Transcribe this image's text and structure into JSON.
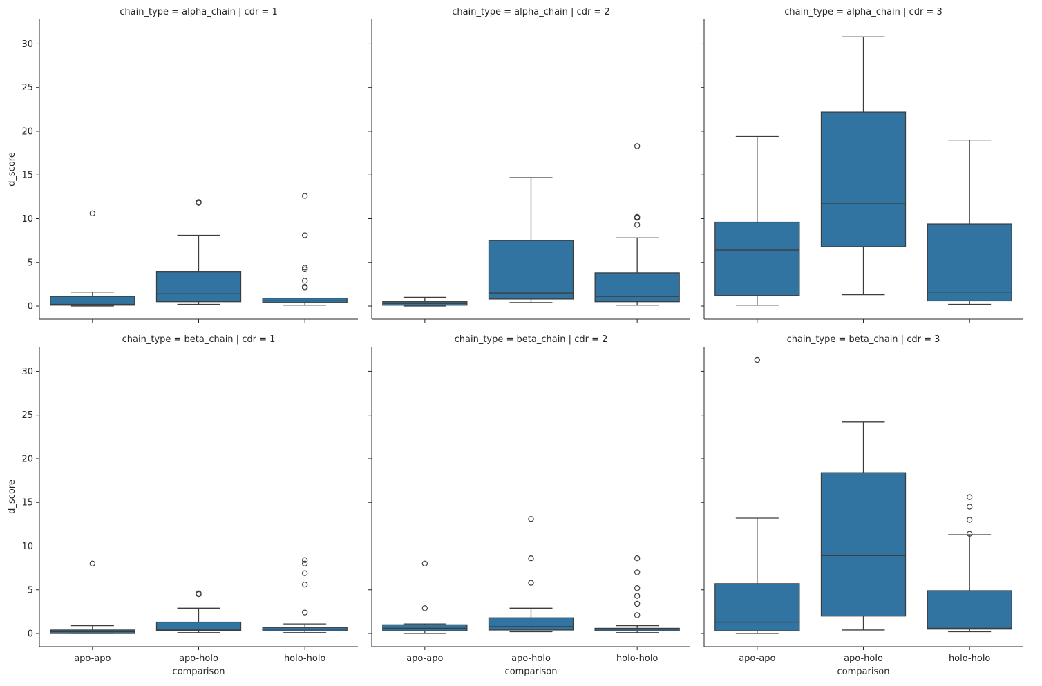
{
  "chart_data": {
    "type": "box",
    "xlabel": "comparison",
    "ylabel": "d_score",
    "categories": [
      "apo-apo",
      "apo-holo",
      "holo-holo"
    ],
    "ylim": [
      -1.5,
      32.8
    ],
    "yticks": [
      0,
      5,
      10,
      15,
      20,
      25,
      30
    ],
    "colors": {
      "box": "#3274a1",
      "line": "#3d3d3d",
      "spine": "#262626"
    },
    "facets": [
      {
        "title": "chain_type = alpha_chain | cdr = 1",
        "boxes": [
          {
            "category": "apo-apo",
            "whisker_low": 0.0,
            "q1": 0.1,
            "median": 0.2,
            "q3": 1.1,
            "whisker_high": 1.6,
            "outliers": [
              10.6
            ]
          },
          {
            "category": "apo-holo",
            "whisker_low": 0.2,
            "q1": 0.5,
            "median": 1.4,
            "q3": 3.9,
            "whisker_high": 8.1,
            "outliers": [
              11.8,
              11.9
            ]
          },
          {
            "category": "holo-holo",
            "whisker_low": 0.1,
            "q1": 0.4,
            "median": 0.6,
            "q3": 0.9,
            "whisker_high": 0.9,
            "outliers": [
              2.1,
              2.2,
              2.9,
              4.2,
              4.4,
              8.1,
              12.6
            ]
          }
        ]
      },
      {
        "title": "chain_type = alpha_chain | cdr = 2",
        "boxes": [
          {
            "category": "apo-apo",
            "whisker_low": 0.0,
            "q1": 0.1,
            "median": 0.3,
            "q3": 0.5,
            "whisker_high": 1.0,
            "outliers": []
          },
          {
            "category": "apo-holo",
            "whisker_low": 0.4,
            "q1": 0.8,
            "median": 1.5,
            "q3": 7.5,
            "whisker_high": 14.7,
            "outliers": []
          },
          {
            "category": "holo-holo",
            "whisker_low": 0.1,
            "q1": 0.5,
            "median": 1.1,
            "q3": 3.8,
            "whisker_high": 7.8,
            "outliers": [
              9.3,
              10.1,
              10.2,
              18.3
            ]
          }
        ]
      },
      {
        "title": "chain_type = alpha_chain | cdr = 3",
        "boxes": [
          {
            "category": "apo-apo",
            "whisker_low": 0.1,
            "q1": 1.2,
            "median": 6.4,
            "q3": 9.6,
            "whisker_high": 19.4,
            "outliers": []
          },
          {
            "category": "apo-holo",
            "whisker_low": 1.3,
            "q1": 6.8,
            "median": 11.7,
            "q3": 22.2,
            "whisker_high": 30.8,
            "outliers": []
          },
          {
            "category": "holo-holo",
            "whisker_low": 0.2,
            "q1": 0.6,
            "median": 1.6,
            "q3": 9.4,
            "whisker_high": 19.0,
            "outliers": []
          }
        ]
      },
      {
        "title": "chain_type = beta_chain | cdr = 1",
        "boxes": [
          {
            "category": "apo-apo",
            "whisker_low": 0.0,
            "q1": 0.0,
            "median": 0.2,
            "q3": 0.4,
            "whisker_high": 0.9,
            "outliers": [
              8.0
            ]
          },
          {
            "category": "apo-holo",
            "whisker_low": 0.1,
            "q1": 0.3,
            "median": 0.4,
            "q3": 1.3,
            "whisker_high": 2.9,
            "outliers": [
              4.5,
              4.6
            ]
          },
          {
            "category": "holo-holo",
            "whisker_low": 0.1,
            "q1": 0.3,
            "median": 0.5,
            "q3": 0.7,
            "whisker_high": 1.1,
            "outliers": [
              2.4,
              5.6,
              6.9,
              8.0,
              8.4
            ]
          }
        ]
      },
      {
        "title": "chain_type = beta_chain | cdr = 2",
        "boxes": [
          {
            "category": "apo-apo",
            "whisker_low": 0.0,
            "q1": 0.3,
            "median": 0.6,
            "q3": 1.0,
            "whisker_high": 1.1,
            "outliers": [
              2.9,
              8.0
            ]
          },
          {
            "category": "apo-holo",
            "whisker_low": 0.2,
            "q1": 0.4,
            "median": 0.8,
            "q3": 1.8,
            "whisker_high": 2.9,
            "outliers": [
              5.8,
              8.6,
              13.1
            ]
          },
          {
            "category": "holo-holo",
            "whisker_low": 0.1,
            "q1": 0.3,
            "median": 0.5,
            "q3": 0.6,
            "whisker_high": 0.9,
            "outliers": [
              2.1,
              3.4,
              4.3,
              5.2,
              7.0,
              8.6
            ]
          }
        ]
      },
      {
        "title": "chain_type = beta_chain | cdr = 3",
        "boxes": [
          {
            "category": "apo-apo",
            "whisker_low": 0.0,
            "q1": 0.3,
            "median": 1.3,
            "q3": 5.7,
            "whisker_high": 13.2,
            "outliers": [
              31.3
            ]
          },
          {
            "category": "apo-holo",
            "whisker_low": 0.4,
            "q1": 2.0,
            "median": 8.9,
            "q3": 18.4,
            "whisker_high": 24.2,
            "outliers": []
          },
          {
            "category": "holo-holo",
            "whisker_low": 0.2,
            "q1": 0.5,
            "median": 0.6,
            "q3": 4.9,
            "whisker_high": 11.3,
            "outliers": [
              11.4,
              13.0,
              14.5,
              15.6
            ]
          }
        ]
      }
    ]
  }
}
